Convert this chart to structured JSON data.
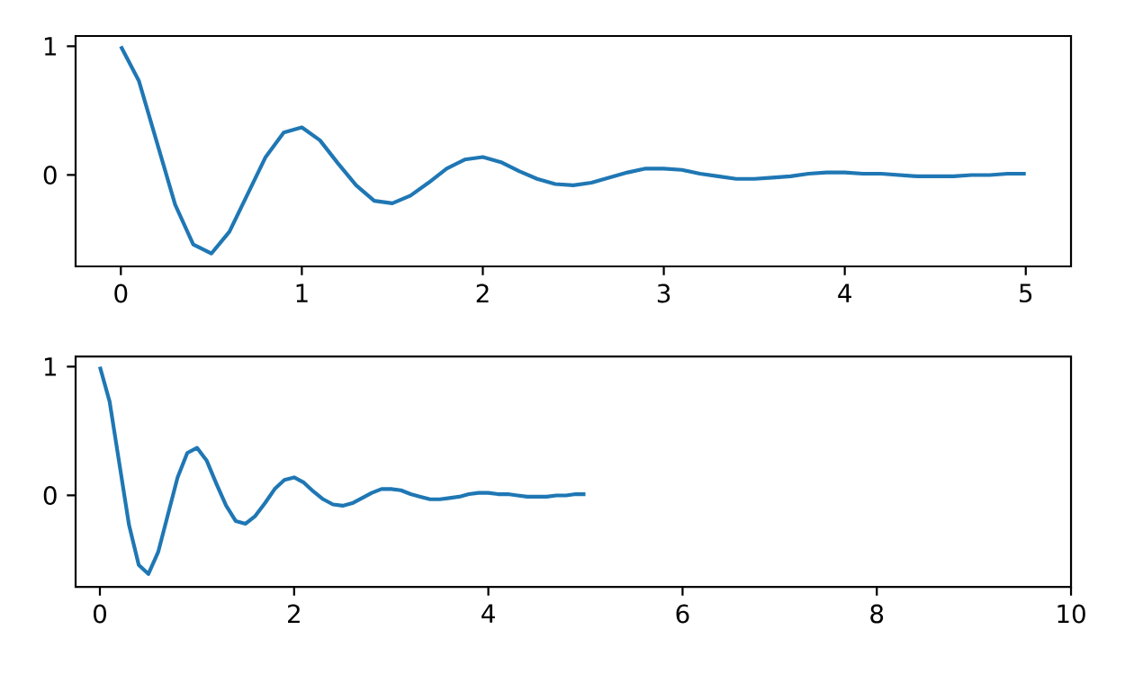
{
  "chart_data": [
    {
      "type": "line",
      "x": [
        0,
        0.1,
        0.2,
        0.3,
        0.4,
        0.5,
        0.6,
        0.7,
        0.8,
        0.9,
        1.0,
        1.1,
        1.2,
        1.3,
        1.4,
        1.5,
        1.6,
        1.7,
        1.8,
        1.9,
        2.0,
        2.1,
        2.2,
        2.3,
        2.4,
        2.5,
        2.6,
        2.7,
        2.8,
        2.9,
        3.0,
        3.1,
        3.2,
        3.3,
        3.4,
        3.5,
        3.6,
        3.7,
        3.8,
        3.9,
        4.0,
        4.1,
        4.2,
        4.3,
        4.4,
        4.5,
        4.6,
        4.7,
        4.8,
        4.9,
        5.0
      ],
      "series": [
        {
          "color": "#1f77b4",
          "values": [
            1,
            0.73,
            0.25,
            -0.23,
            -0.54,
            -0.61,
            -0.44,
            -0.15,
            0.14,
            0.33,
            0.37,
            0.27,
            0.09,
            -0.08,
            -0.2,
            -0.22,
            -0.16,
            -0.06,
            0.05,
            0.12,
            0.14,
            0.1,
            0.03,
            -0.03,
            -0.07,
            -0.08,
            -0.06,
            -0.02,
            0.02,
            0.05,
            0.05,
            0.04,
            0.01,
            -0.01,
            -0.03,
            -0.03,
            -0.02,
            -0.01,
            0.01,
            0.02,
            0.02,
            0.01,
            0.01,
            0,
            -0.01,
            -0.01,
            -0.01,
            0,
            0,
            0.01,
            0.01
          ]
        }
      ],
      "xlim": [
        -0.25,
        5.25
      ],
      "ylim": [
        -0.71,
        1.08
      ],
      "xticks": [
        0,
        1,
        2,
        3,
        4,
        5
      ],
      "yticks": [
        0,
        1
      ],
      "grid": false
    },
    {
      "type": "line",
      "x": [
        0,
        0.1,
        0.2,
        0.3,
        0.4,
        0.5,
        0.6,
        0.7,
        0.8,
        0.9,
        1.0,
        1.1,
        1.2,
        1.3,
        1.4,
        1.5,
        1.6,
        1.7,
        1.8,
        1.9,
        2.0,
        2.1,
        2.2,
        2.3,
        2.4,
        2.5,
        2.6,
        2.7,
        2.8,
        2.9,
        3.0,
        3.1,
        3.2,
        3.3,
        3.4,
        3.5,
        3.6,
        3.7,
        3.8,
        3.9,
        4.0,
        4.1,
        4.2,
        4.3,
        4.4,
        4.5,
        4.6,
        4.7,
        4.8,
        4.9,
        5.0
      ],
      "series": [
        {
          "color": "#1f77b4",
          "values": [
            1,
            0.73,
            0.25,
            -0.23,
            -0.54,
            -0.61,
            -0.44,
            -0.15,
            0.14,
            0.33,
            0.37,
            0.27,
            0.09,
            -0.08,
            -0.2,
            -0.22,
            -0.16,
            -0.06,
            0.05,
            0.12,
            0.14,
            0.1,
            0.03,
            -0.03,
            -0.07,
            -0.08,
            -0.06,
            -0.02,
            0.02,
            0.05,
            0.05,
            0.04,
            0.01,
            -0.01,
            -0.03,
            -0.03,
            -0.02,
            -0.01,
            0.01,
            0.02,
            0.02,
            0.01,
            0.01,
            0,
            -0.01,
            -0.01,
            -0.01,
            0,
            0,
            0.01,
            0.01
          ]
        }
      ],
      "xlim": [
        -0.25,
        10
      ],
      "ylim": [
        -0.71,
        1.08
      ],
      "xticks": [
        0,
        2,
        4,
        6,
        8,
        10
      ],
      "yticks": [
        0,
        1
      ],
      "grid": false
    }
  ]
}
